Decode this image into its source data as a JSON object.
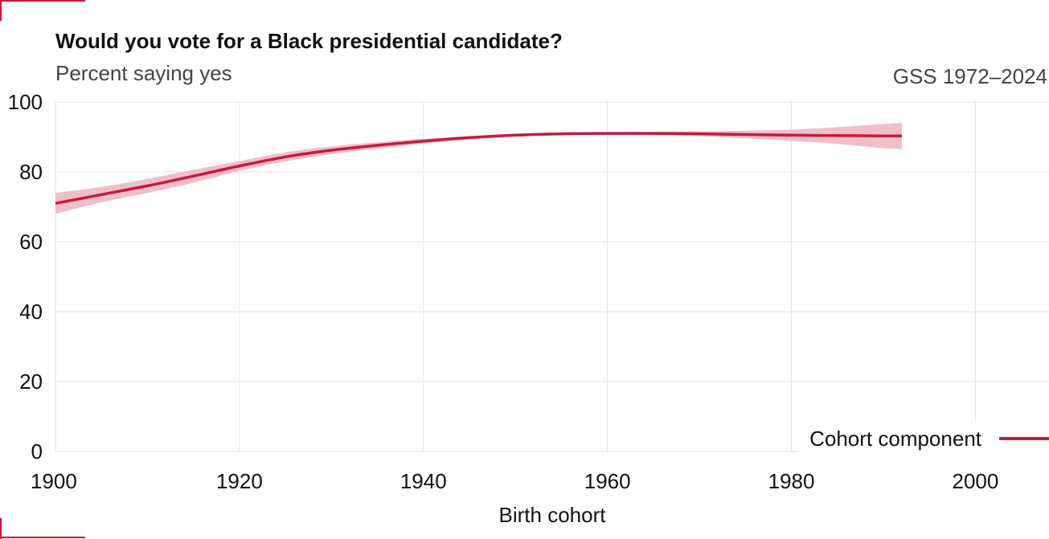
{
  "header": {
    "title": "Would you vote for a Black presidential candidate?",
    "subtitle": "Percent saying yes",
    "source": "GSS 1972–2024"
  },
  "colors": {
    "series": "#c8193c",
    "band": "#ecb4bd",
    "grid": "#e2e2e2",
    "text": "#111111",
    "accent": "#c8193c"
  },
  "chart_data": {
    "type": "line",
    "title": "Would you vote for a Black presidential candidate?",
    "subtitle": "Percent saying yes",
    "xlabel": "Birth cohort",
    "ylabel": "",
    "xlim": [
      1900,
      2008
    ],
    "ylim": [
      0,
      100
    ],
    "x_ticks": [
      1900,
      1920,
      1940,
      1960,
      1980,
      2000
    ],
    "y_ticks": [
      0,
      20,
      40,
      60,
      80,
      100
    ],
    "grid": true,
    "legend_position": "bottom-right",
    "series": [
      {
        "name": "Cohort component",
        "x": [
          1900,
          1905,
          1910,
          1915,
          1920,
          1925,
          1930,
          1935,
          1940,
          1945,
          1950,
          1955,
          1960,
          1965,
          1970,
          1975,
          1980,
          1985,
          1990,
          1992
        ],
        "y": [
          71.0,
          73.5,
          76.0,
          78.8,
          81.7,
          84.3,
          86.2,
          87.6,
          88.8,
          89.8,
          90.5,
          90.9,
          91.0,
          91.0,
          90.9,
          90.7,
          90.5,
          90.4,
          90.3,
          90.3
        ],
        "lower": [
          68.0,
          71.3,
          74.0,
          76.9,
          80.3,
          83.0,
          85.1,
          86.7,
          88.1,
          89.3,
          90.1,
          90.5,
          90.6,
          90.5,
          90.2,
          89.6,
          88.9,
          88.0,
          86.8,
          86.5
        ],
        "upper": [
          74.0,
          75.7,
          78.0,
          80.6,
          83.1,
          85.6,
          87.3,
          88.5,
          89.5,
          90.3,
          90.9,
          91.3,
          91.4,
          91.5,
          91.6,
          91.8,
          92.1,
          92.8,
          93.7,
          94.1
        ]
      }
    ]
  }
}
